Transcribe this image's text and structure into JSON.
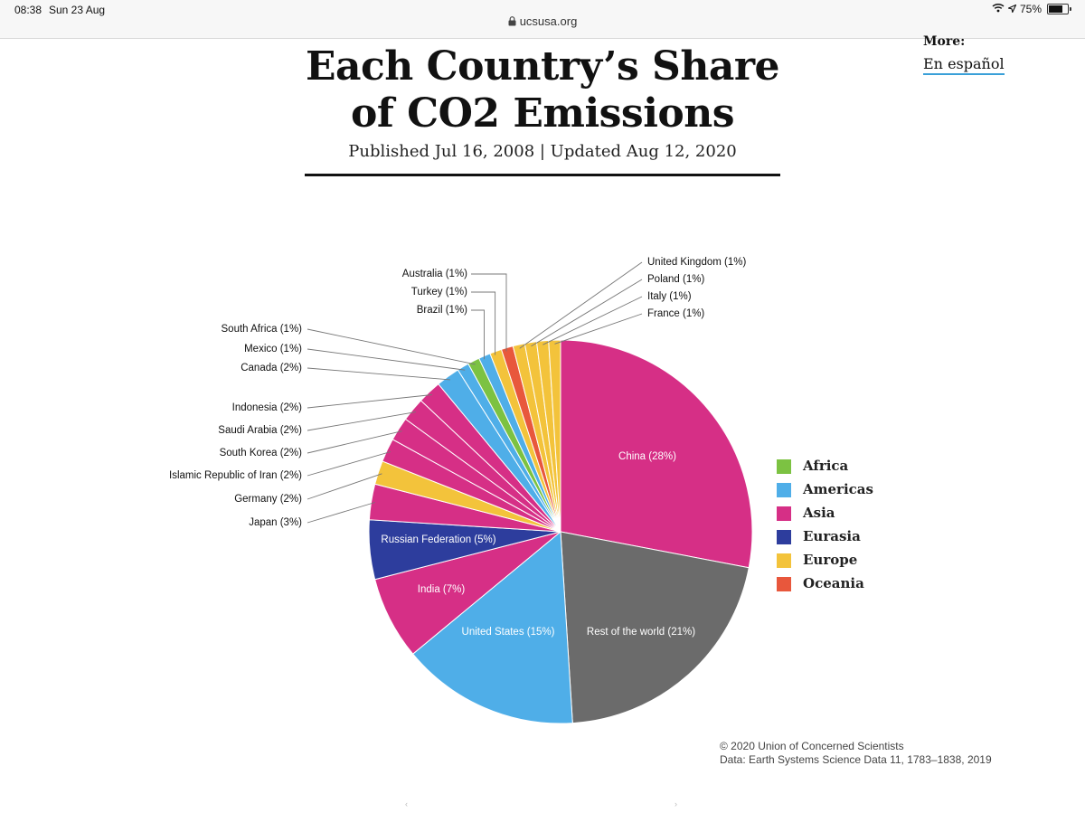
{
  "status_bar": {
    "time": "08:38",
    "date": "Sun 23 Aug",
    "url": "ucsusa.org",
    "battery": "75%",
    "battery_level": 0.75
  },
  "header": {
    "title_line1": "Each Country’s Share",
    "title_line2": "of CO2 Emissions",
    "published": "Published Jul 16, 2008 | Updated Aug 12, 2020"
  },
  "sidebar": {
    "more_label": "More:",
    "link_label": "En español"
  },
  "footer": {
    "credit_line1": "© 2020 Union of Concerned Scientists",
    "credit_line2": "Data: Earth Systems Science Data 11, 1783–1838, 2019"
  },
  "chart_data": {
    "type": "pie",
    "slices": [
      {
        "label": "China (28%)",
        "value": 28,
        "region": "Asia"
      },
      {
        "label": "Rest of the world (21%)",
        "value": 21,
        "region": "Other"
      },
      {
        "label": "United States (15%)",
        "value": 15,
        "region": "Americas"
      },
      {
        "label": "India (7%)",
        "value": 7,
        "region": "Asia"
      },
      {
        "label": "Russian Federation (5%)",
        "value": 5,
        "region": "Eurasia"
      },
      {
        "label": "Japan (3%)",
        "value": 3,
        "region": "Asia"
      },
      {
        "label": "Germany (2%)",
        "value": 2,
        "region": "Europe"
      },
      {
        "label": "Islamic Republic of Iran (2%)",
        "value": 2,
        "region": "Asia"
      },
      {
        "label": "South Korea (2%)",
        "value": 2,
        "region": "Asia"
      },
      {
        "label": "Saudi Arabia (2%)",
        "value": 2,
        "region": "Asia"
      },
      {
        "label": "Indonesia (2%)",
        "value": 2,
        "region": "Asia"
      },
      {
        "label": "Canada (2%)",
        "value": 2,
        "region": "Americas"
      },
      {
        "label": "Mexico (1%)",
        "value": 1,
        "region": "Americas"
      },
      {
        "label": "South Africa (1%)",
        "value": 1,
        "region": "Africa"
      },
      {
        "label": "Brazil (1%)",
        "value": 1,
        "region": "Americas"
      },
      {
        "label": "Turkey (1%)",
        "value": 1,
        "region": "Europe"
      },
      {
        "label": "Australia (1%)",
        "value": 1,
        "region": "Oceania"
      },
      {
        "label": "United Kingdom (1%)",
        "value": 1,
        "region": "Europe"
      },
      {
        "label": "Poland (1%)",
        "value": 1,
        "region": "Europe"
      },
      {
        "label": "Italy (1%)",
        "value": 1,
        "region": "Europe"
      },
      {
        "label": "France (1%)",
        "value": 1,
        "region": "Europe"
      }
    ],
    "legend": [
      {
        "name": "Africa",
        "color": "#7cc242"
      },
      {
        "name": "Americas",
        "color": "#4faee8"
      },
      {
        "name": "Asia",
        "color": "#d62f86"
      },
      {
        "name": "Eurasia",
        "color": "#2d3d9d"
      },
      {
        "name": "Europe",
        "color": "#f3c33b"
      },
      {
        "name": "Oceania",
        "color": "#e8573c"
      }
    ],
    "other_color": "#6b6b6b",
    "legend_position": "right",
    "start_angle": "top, clockwise"
  }
}
